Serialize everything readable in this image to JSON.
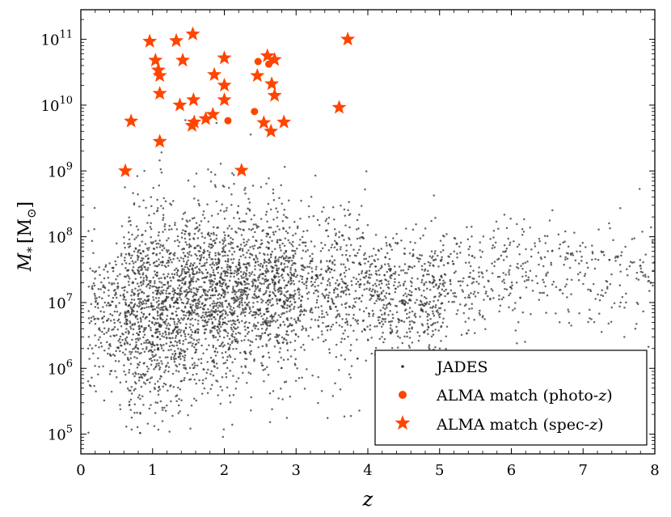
{
  "chart_data": {
    "type": "scatter",
    "xlabel": "z",
    "ylabel_main": "M",
    "ylabel_sub": "*",
    "ylabel_unit_open": "[M",
    "ylabel_unit_sub": "⊙",
    "ylabel_unit_close": "]",
    "xlim": [
      0,
      8
    ],
    "ylim_log10": [
      4.7,
      11.45
    ],
    "y_scale": "log",
    "x_ticks": [
      0,
      1,
      2,
      3,
      4,
      5,
      6,
      7,
      8
    ],
    "x_tick_labels": [
      "0",
      "1",
      "2",
      "3",
      "4",
      "5",
      "6",
      "7",
      "8"
    ],
    "y_ticks_log10": [
      5,
      6,
      7,
      8,
      9,
      10,
      11
    ],
    "y_tick_bases": [
      "10",
      "10",
      "10",
      "10",
      "10",
      "10",
      "10"
    ],
    "y_tick_exponents": [
      "5",
      "6",
      "7",
      "8",
      "9",
      "10",
      "11"
    ],
    "grid": false,
    "legend_position": "bottom-right",
    "legend": [
      {
        "label": "JADES",
        "marker": "dot",
        "color": "#333333"
      },
      {
        "label_pre": "ALMA match (photo-",
        "label_italic": "z",
        "label_post": ")",
        "marker": "circle",
        "color": "#ff4500"
      },
      {
        "label_pre": "ALMA match (spec-",
        "label_italic": "z",
        "label_post": ")",
        "marker": "star",
        "color": "#ff4500"
      }
    ],
    "series": [
      {
        "name": "JADES",
        "color": "#333333",
        "note_points": "dense cloud of several thousand galaxies, generated procedurally",
        "density_profile": [
          {
            "z": [
              0.1,
              0.6
            ],
            "logM_median": 6.8,
            "logM_spread": 0.55,
            "weight": 0.05
          },
          {
            "z": [
              0.6,
              1.4
            ],
            "logM_median": 6.9,
            "logM_spread": 0.75,
            "weight": 0.22
          },
          {
            "z": [
              1.4,
              2.2
            ],
            "logM_median": 7.1,
            "logM_spread": 0.7,
            "weight": 0.22
          },
          {
            "z": [
              2.2,
              3.0
            ],
            "logM_median": 7.2,
            "logM_spread": 0.65,
            "weight": 0.18
          },
          {
            "z": [
              3.0,
              4.0
            ],
            "logM_median": 7.25,
            "logM_spread": 0.6,
            "weight": 0.11
          },
          {
            "z": [
              4.0,
              5.1
            ],
            "logM_median": 7.1,
            "logM_spread": 0.45,
            "weight": 0.12
          },
          {
            "z": [
              5.1,
              6.2
            ],
            "logM_median": 7.4,
            "logM_spread": 0.45,
            "weight": 0.05
          },
          {
            "z": [
              6.2,
              8.0
            ],
            "logM_median": 7.5,
            "logM_spread": 0.4,
            "weight": 0.05
          }
        ],
        "total_points": 4200
      },
      {
        "name": "ALMA match (photo-z)",
        "color": "#ff4500",
        "marker": "circle",
        "points": [
          {
            "x": 2.05,
            "y": 5800000000.0
          },
          {
            "x": 2.42,
            "y": 8000000000.0
          },
          {
            "x": 2.47,
            "y": 46000000000.0
          },
          {
            "x": 2.62,
            "y": 42000000000.0
          }
        ]
      },
      {
        "name": "ALMA match (spec-z)",
        "color": "#ff4500",
        "marker": "star",
        "points": [
          {
            "x": 0.62,
            "y": 1000000000.0
          },
          {
            "x": 0.7,
            "y": 5700000000.0
          },
          {
            "x": 0.96,
            "y": 93000000000.0
          },
          {
            "x": 1.04,
            "y": 48000000000.0
          },
          {
            "x": 1.08,
            "y": 34000000000.0
          },
          {
            "x": 1.1,
            "y": 28000000000.0
          },
          {
            "x": 1.1,
            "y": 15000000000.0
          },
          {
            "x": 1.1,
            "y": 2800000000.0
          },
          {
            "x": 1.33,
            "y": 95000000000.0
          },
          {
            "x": 1.38,
            "y": 10000000000.0
          },
          {
            "x": 1.42,
            "y": 48000000000.0
          },
          {
            "x": 1.55,
            "y": 4900000000.0
          },
          {
            "x": 1.56,
            "y": 120000000000.0
          },
          {
            "x": 1.57,
            "y": 12000000000.0
          },
          {
            "x": 1.58,
            "y": 5500000000.0
          },
          {
            "x": 1.74,
            "y": 6200000000.0
          },
          {
            "x": 1.84,
            "y": 7200000000.0
          },
          {
            "x": 1.86,
            "y": 29000000000.0
          },
          {
            "x": 2.0,
            "y": 52000000000.0
          },
          {
            "x": 2.0,
            "y": 20000000000.0
          },
          {
            "x": 2.0,
            "y": 12000000000.0
          },
          {
            "x": 2.24,
            "y": 1020000000.0
          },
          {
            "x": 2.46,
            "y": 28000000000.0
          },
          {
            "x": 2.55,
            "y": 5400000000.0
          },
          {
            "x": 2.6,
            "y": 56000000000.0
          },
          {
            "x": 2.65,
            "y": 4000000000.0
          },
          {
            "x": 2.66,
            "y": 21000000000.0
          },
          {
            "x": 2.7,
            "y": 14000000000.0
          },
          {
            "x": 2.7,
            "y": 49000000000.0
          },
          {
            "x": 2.83,
            "y": 5500000000.0
          },
          {
            "x": 3.6,
            "y": 9200000000.0
          },
          {
            "x": 3.72,
            "y": 100000000000.0
          }
        ]
      }
    ]
  }
}
